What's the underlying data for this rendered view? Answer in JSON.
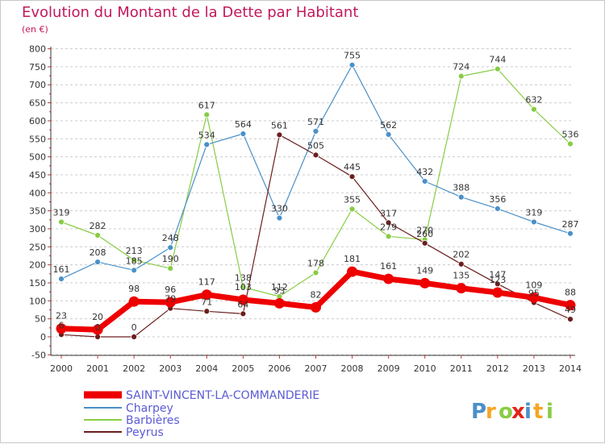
{
  "title": "Evolution du Montant de la Dette par Habitant",
  "unit": "(en €)",
  "brand": "Proxiti",
  "colors": {
    "background": "#ffffff",
    "title": "#c2185b",
    "axis": "#333333",
    "gridline": "#cccccc",
    "tick_marks": "#cc3333",
    "legend_text": "#5b5bd6"
  },
  "chart_data": {
    "type": "line",
    "title": "Evolution du Montant de la Dette par Habitant",
    "ylabel": "(en €)",
    "xlabel": "",
    "x": [
      "2000",
      "2001",
      "2002",
      "2003",
      "2004",
      "2005",
      "2006",
      "2007",
      "2008",
      "2009",
      "2010",
      "2011",
      "2012",
      "2013",
      "2014"
    ],
    "yticks": [
      -50,
      0,
      50,
      100,
      150,
      200,
      250,
      300,
      350,
      400,
      450,
      500,
      550,
      600,
      650,
      700,
      750,
      800
    ],
    "ylim": [
      -50,
      800
    ],
    "grid": "horizontal-dashed",
    "legend_position": "bottom-left",
    "series": [
      {
        "name": "Charpey",
        "color": "#4a90c8",
        "width": 1.2,
        "values": [
          161,
          208,
          185,
          248,
          534,
          564,
          330,
          571,
          755,
          562,
          432,
          388,
          356,
          319,
          287
        ]
      },
      {
        "name": "Barbières",
        "color": "#88cc44",
        "width": 1.2,
        "values": [
          319,
          282,
          213,
          190,
          617,
          138,
          112,
          178,
          355,
          279,
          270,
          724,
          744,
          632,
          536
        ]
      },
      {
        "name": "Peyrus",
        "color": "#6b1e1e",
        "width": 1.2,
        "values": [
          6,
          0,
          0,
          79,
          71,
          64,
          561,
          505,
          445,
          317,
          260,
          202,
          147,
          95,
          49
        ]
      },
      {
        "name": "SAINT-VINCENT-LA-COMMANDERIE",
        "color": "#ee0000",
        "width": 7,
        "values": [
          23,
          20,
          98,
          96,
          117,
          103,
          93,
          82,
          181,
          161,
          149,
          135,
          123,
          109,
          88
        ]
      }
    ],
    "data_labels": [
      {
        "series": "Charpey",
        "values": [
          "161",
          "208",
          "185",
          "248",
          "534",
          "564",
          "330",
          "571",
          "755",
          "562",
          "432",
          "388",
          "356",
          "319",
          "287"
        ]
      },
      {
        "series": "Barbières",
        "values": [
          "319",
          "282",
          "213",
          "190",
          "617",
          "138",
          "112",
          "178",
          "355",
          "279",
          "270",
          "724",
          "744",
          "632",
          "536"
        ]
      },
      {
        "series": "Peyrus",
        "values": [
          "6",
          "0",
          "0",
          "79",
          "71",
          "64",
          "561",
          "505",
          "445",
          "317",
          "260",
          "202",
          "147",
          "95",
          "49"
        ]
      },
      {
        "series": "SAINT-VINCENT-LA-COMMANDERIE",
        "values": [
          "23",
          "20",
          "98",
          "96",
          "117",
          "103",
          "93",
          "82",
          "181",
          "161",
          "149",
          "135",
          "123",
          "109",
          "88"
        ]
      }
    ],
    "legend_order": [
      "SAINT-VINCENT-LA-COMMANDERIE",
      "Charpey",
      "Barbières",
      "Peyrus"
    ]
  }
}
